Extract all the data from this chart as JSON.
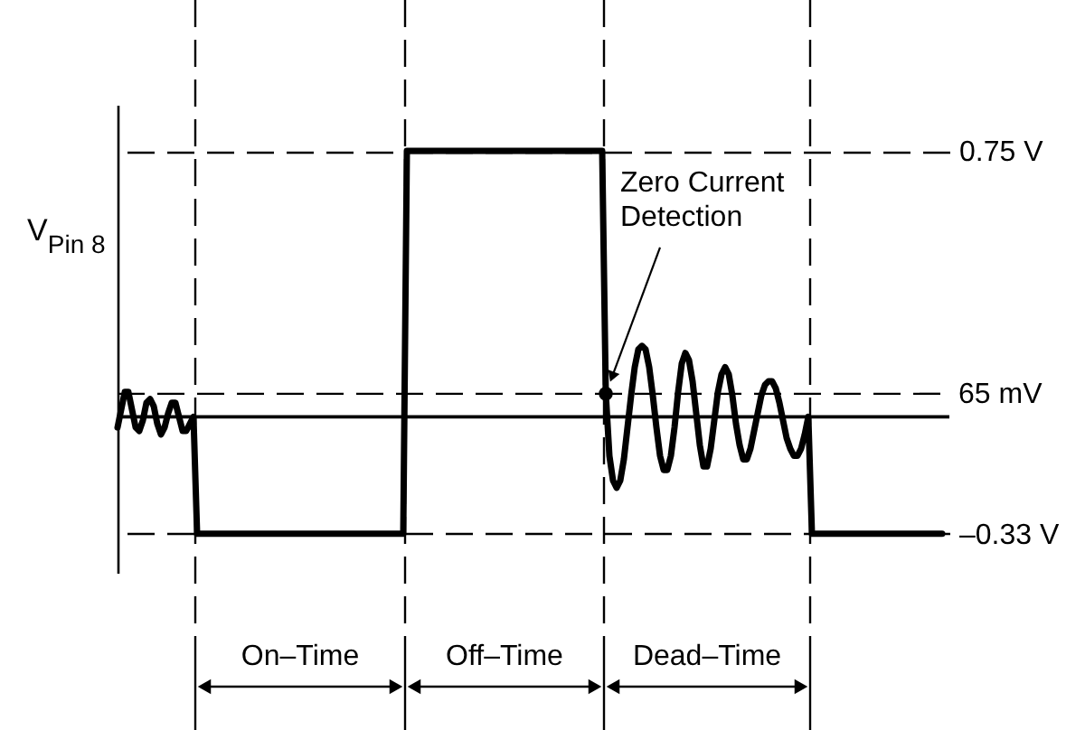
{
  "chart_data": {
    "type": "line",
    "ylabel": "V$_{Pin 8}$",
    "categories": [
      null,
      null,
      null,
      null,
      null,
      null,
      null,
      null,
      null,
      null,
      null,
      null,
      null,
      null,
      null,
      null,
      null,
      null,
      null,
      null,
      null,
      null,
      null,
      null,
      null,
      null,
      null,
      null,
      null,
      null,
      null,
      null,
      null,
      null,
      null,
      null,
      null,
      null,
      null,
      null,
      null,
      null,
      null,
      null,
      null,
      null,
      null,
      null,
      null,
      null,
      null,
      null,
      null,
      null,
      null,
      null,
      null,
      null,
      null,
      null,
      null,
      null,
      null,
      null,
      null,
      null,
      null,
      null,
      null,
      null,
      null,
      null,
      null,
      null,
      null,
      null,
      null,
      null,
      null,
      null,
      null,
      null,
      null,
      null,
      null,
      null,
      null,
      null,
      null,
      null,
      null,
      null,
      null,
      null,
      null,
      null,
      null,
      null,
      null,
      null,
      null,
      null,
      null,
      null,
      null,
      null,
      null,
      null,
      null,
      null,
      null,
      null,
      null,
      null,
      null,
      null,
      null,
      null,
      null,
      null,
      null,
      null,
      null,
      null,
      null,
      null,
      null,
      null,
      null,
      null,
      null,
      null,
      null,
      null,
      null,
      null,
      null,
      null,
      null,
      null,
      null,
      null,
      null,
      null,
      null,
      null,
      null,
      null,
      null,
      null,
      null,
      null,
      null,
      null,
      null,
      null,
      null,
      null,
      null,
      null,
      null,
      null,
      null,
      null,
      null,
      null,
      null,
      null,
      null,
      null,
      null,
      null,
      null,
      null,
      null,
      null,
      null,
      null,
      null,
      null,
      null,
      null,
      null,
      null,
      null,
      null,
      null,
      null,
      null,
      null,
      null,
      null,
      null,
      null,
      null,
      null,
      null,
      null,
      null,
      null,
      null,
      null,
      null,
      null,
      null,
      null,
      null,
      null,
      null,
      null,
      null,
      null,
      null,
      null,
      null,
      null,
      null,
      null,
      null,
      null,
      null,
      null,
      null,
      null,
      null,
      null,
      null,
      null,
      null
    ],
    "series": [
      {
        "color": "#000000",
        "values": [
          -0.03,
          0.02,
          0.07,
          0.07,
          0.02,
          -0.03,
          -0.04,
          -0.01,
          0.04,
          0.05,
          0.03,
          -0.02,
          -0.05,
          -0.03,
          0.01,
          0.04,
          0.04,
          0.0,
          -0.04,
          -0.04,
          -0.02,
          0.0,
          -0.33,
          -0.33,
          -0.33,
          -0.33,
          -0.33,
          -0.33,
          -0.33,
          -0.33,
          -0.33,
          -0.33,
          -0.33,
          -0.33,
          -0.33,
          -0.33,
          -0.33,
          -0.33,
          -0.33,
          -0.33,
          -0.33,
          -0.33,
          -0.33,
          -0.33,
          -0.33,
          -0.33,
          -0.33,
          -0.33,
          -0.33,
          -0.33,
          -0.33,
          -0.33,
          -0.33,
          -0.33,
          -0.33,
          -0.33,
          -0.33,
          -0.33,
          -0.33,
          -0.33,
          -0.33,
          -0.33,
          -0.33,
          -0.33,
          -0.33,
          -0.33,
          -0.33,
          -0.33,
          -0.33,
          -0.33,
          -0.33,
          -0.33,
          -0.33,
          -0.33,
          -0.33,
          -0.33,
          -0.33,
          -0.33,
          -0.33,
          -0.33,
          0.75,
          0.75,
          0.75,
          0.75,
          0.75,
          0.75,
          0.75,
          0.75,
          0.75,
          0.75,
          0.75,
          0.75,
          0.75,
          0.75,
          0.75,
          0.75,
          0.75,
          0.75,
          0.75,
          0.75,
          0.75,
          0.75,
          0.75,
          0.75,
          0.75,
          0.75,
          0.75,
          0.75,
          0.75,
          0.75,
          0.75,
          0.75,
          0.75,
          0.75,
          0.75,
          0.75,
          0.75,
          0.75,
          0.75,
          0.75,
          0.75,
          0.75,
          0.75,
          0.75,
          0.75,
          0.75,
          0.75,
          0.75,
          0.75,
          0.75,
          0.75,
          0.75,
          0.75,
          0.75,
          0.75,
          0.065,
          -0.11,
          -0.18,
          -0.2,
          -0.18,
          -0.12,
          -0.03,
          0.06,
          0.14,
          0.19,
          0.2,
          0.19,
          0.14,
          0.06,
          -0.03,
          -0.11,
          -0.15,
          -0.15,
          -0.11,
          -0.03,
          0.07,
          0.15,
          0.18,
          0.16,
          0.1,
          0.01,
          -0.08,
          -0.14,
          -0.14,
          -0.09,
          -0.01,
          0.07,
          0.12,
          0.14,
          0.12,
          0.06,
          -0.02,
          -0.08,
          -0.12,
          -0.12,
          -0.09,
          -0.04,
          0.01,
          0.06,
          0.09,
          0.1,
          0.1,
          0.08,
          0.04,
          -0.01,
          -0.06,
          -0.09,
          -0.11,
          -0.11,
          -0.09,
          -0.05,
          0.0,
          -0.33,
          -0.33,
          -0.33,
          -0.33,
          -0.33,
          -0.33,
          -0.33,
          -0.33,
          -0.33,
          -0.33,
          -0.33,
          -0.33,
          -0.33,
          -0.33,
          -0.33,
          -0.33,
          -0.33,
          -0.33,
          -0.33,
          -0.33,
          -0.33,
          -0.33,
          -0.33,
          -0.33,
          -0.33,
          -0.33,
          -0.33,
          -0.33,
          -0.33,
          -0.33,
          -0.33,
          -0.33,
          -0.33,
          -0.33,
          -0.33,
          -0.33,
          -0.33
        ]
      },
      {
        "type": "scatter",
        "color": "#000000",
        "marker": "circle",
        "values": [
          null,
          null,
          null,
          null,
          null,
          null,
          null,
          null,
          null,
          null,
          null,
          null,
          null,
          null,
          null,
          null,
          null,
          null,
          null,
          null,
          null,
          null,
          null,
          null,
          null,
          null,
          null,
          null,
          null,
          null,
          null,
          null,
          null,
          null,
          null,
          null,
          null,
          null,
          null,
          null,
          null,
          null,
          null,
          null,
          null,
          null,
          null,
          null,
          null,
          null,
          null,
          null,
          null,
          null,
          null,
          null,
          null,
          null,
          null,
          null,
          null,
          null,
          null,
          null,
          null,
          null,
          null,
          null,
          null,
          null,
          null,
          null,
          null,
          null,
          null,
          null,
          null,
          null,
          null,
          null,
          null,
          null,
          null,
          null,
          null,
          null,
          null,
          null,
          null,
          null,
          null,
          null,
          null,
          null,
          null,
          null,
          null,
          null,
          null,
          null,
          null,
          null,
          null,
          null,
          null,
          null,
          null,
          null,
          null,
          null,
          null,
          null,
          null,
          null,
          null,
          null,
          null,
          null,
          null,
          null,
          null,
          null,
          null,
          null,
          null,
          null,
          null,
          null,
          null,
          null,
          null,
          null,
          null,
          null,
          null,
          0.065,
          null,
          null,
          null,
          null,
          null,
          null,
          null,
          null,
          null,
          null,
          null,
          null,
          null,
          null,
          null,
          null,
          null,
          null,
          null,
          null,
          null,
          null,
          null,
          null,
          null,
          null,
          null,
          null,
          null,
          null,
          null,
          null,
          null,
          null,
          null,
          null,
          null,
          null,
          null,
          null,
          null,
          null,
          null,
          null,
          null,
          null,
          null,
          null,
          null,
          null,
          null,
          null,
          null,
          null,
          null,
          null,
          null,
          null,
          null,
          null,
          null,
          null,
          null,
          null,
          null,
          null,
          null,
          null,
          null,
          null,
          null,
          null,
          null,
          null,
          null,
          null,
          null,
          null,
          null,
          null,
          null,
          null,
          null,
          null,
          null,
          null,
          null,
          null,
          null,
          null,
          null,
          null,
          null
        ]
      }
    ],
    "ylim": [
      -0.44,
      0.88
    ],
    "yticks": [
      {
        "value": 0.75,
        "label": "0.75 V"
      },
      {
        "value": -0.33,
        "label": "–0.33 V"
      }
    ],
    "tick_labels": "y",
    "grid": "y",
    "ref_lines": [
      {
        "axis": "y",
        "value": 0.065,
        "label": "65 mV",
        "line_style": "dashed",
        "color": "#000000"
      },
      {
        "axis": "y",
        "value": 0,
        "line_style": "solid",
        "color": "#000000"
      }
    ],
    "annotations": [
      "On–Time",
      "Off–Time",
      "Dead–Time",
      "Zero Current Detection"
    ]
  }
}
